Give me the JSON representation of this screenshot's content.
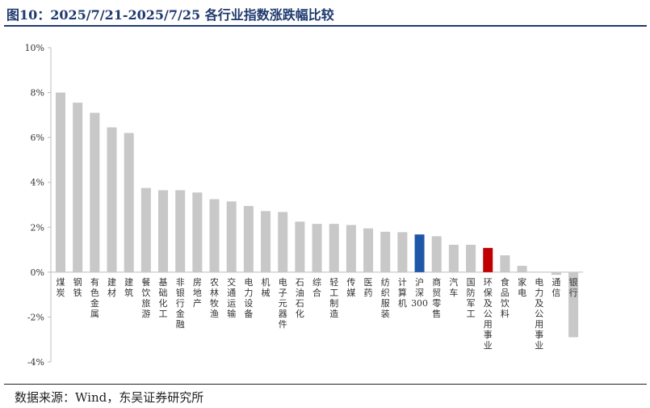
{
  "title": "图10：2025/7/21-2025/7/25 各行业指数涨跌幅比较",
  "source": "数据来源：Wind，东吴证券研究所",
  "colors": {
    "default_bar": "#c8c8c8",
    "highlight_blue": "#1f57a8",
    "highlight_red": "#c00000",
    "title": "#1f3a6e"
  },
  "chart_data": {
    "type": "bar",
    "title": "",
    "xlabel": "",
    "ylabel": "",
    "ylim": [
      -4,
      10
    ],
    "yticks": [
      "-4%",
      "-2%",
      "0%",
      "2%",
      "4%",
      "6%",
      "8%",
      "10%"
    ],
    "ytick_values": [
      -4,
      -2,
      0,
      2,
      4,
      6,
      8,
      10
    ],
    "grid": false,
    "legend": "none",
    "categories": [
      "煤炭",
      "钢铁",
      "有色金属",
      "建材",
      "建筑",
      "餐饮旅游",
      "基础化工",
      "非银行金融",
      "房地产",
      "农林牧渔",
      "交通运输",
      "电力设备",
      "机械",
      "电子元器件",
      "石油石化",
      "综合",
      "轻工制造",
      "传媒",
      "医药",
      "纺织服装",
      "计算机",
      "沪深300",
      "商贸零售",
      "汽车",
      "国防军工",
      "环保及公用事业",
      "食品饮料",
      "家电",
      "电力及公用事业",
      "通信",
      "银行"
    ],
    "values": [
      8.0,
      7.55,
      7.1,
      6.45,
      6.2,
      3.75,
      3.65,
      3.65,
      3.55,
      3.25,
      3.15,
      2.95,
      2.72,
      2.68,
      2.25,
      2.15,
      2.15,
      2.1,
      1.95,
      1.8,
      1.78,
      1.68,
      1.6,
      1.22,
      1.22,
      1.08,
      0.75,
      0.28,
      0.0,
      -0.12,
      -2.9
    ],
    "highlights": {
      "沪深300": "highlight_blue",
      "环保及公用事业": "highlight_red"
    }
  }
}
